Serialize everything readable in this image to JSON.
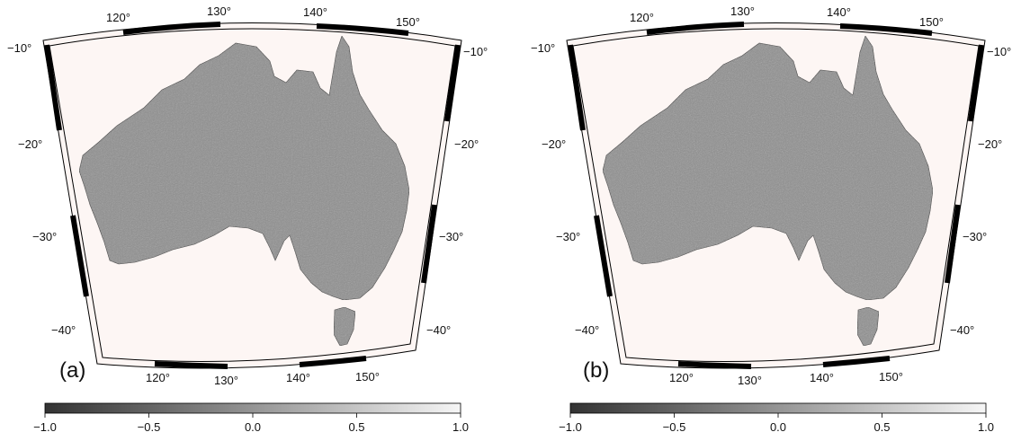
{
  "panels": [
    {
      "label": "(a)",
      "top_lon_labels": [
        "120°",
        "130°",
        "140°",
        "150°"
      ],
      "bottom_lon_labels": [
        "120°",
        "130°",
        "140°",
        "150°"
      ],
      "left_lat_labels": [
        "−10°",
        "−20°",
        "−30°",
        "−40°"
      ],
      "right_lat_labels": [
        "−10°",
        "−20°",
        "−30°",
        "−40°"
      ],
      "colorbar": {
        "min": -1.0,
        "max": 1.0,
        "tick_labels": [
          "−1.0",
          "−0.5",
          "0.0",
          "0.5",
          "1.0"
        ]
      }
    },
    {
      "label": "(b)",
      "top_lon_labels": [
        "120°",
        "130°",
        "140°",
        "150°"
      ],
      "bottom_lon_labels": [
        "120°",
        "130°",
        "140°",
        "150°"
      ],
      "left_lat_labels": [
        "−10°",
        "−20°",
        "−30°",
        "−40°"
      ],
      "right_lat_labels": [
        "−10°",
        "−20°",
        "−30°",
        "−40°"
      ],
      "colorbar": {
        "min": -1.0,
        "max": 1.0,
        "tick_labels": [
          "−1.0",
          "−0.5",
          "0.0",
          "0.5",
          "1.0"
        ]
      }
    }
  ],
  "colors": {
    "background": "#fdf6f4",
    "land": "#8e8e8e",
    "frame_dark": "#000000",
    "frame_light": "#ffffff",
    "cbar_low": "#333333",
    "cbar_high": "#f6f6f6"
  }
}
